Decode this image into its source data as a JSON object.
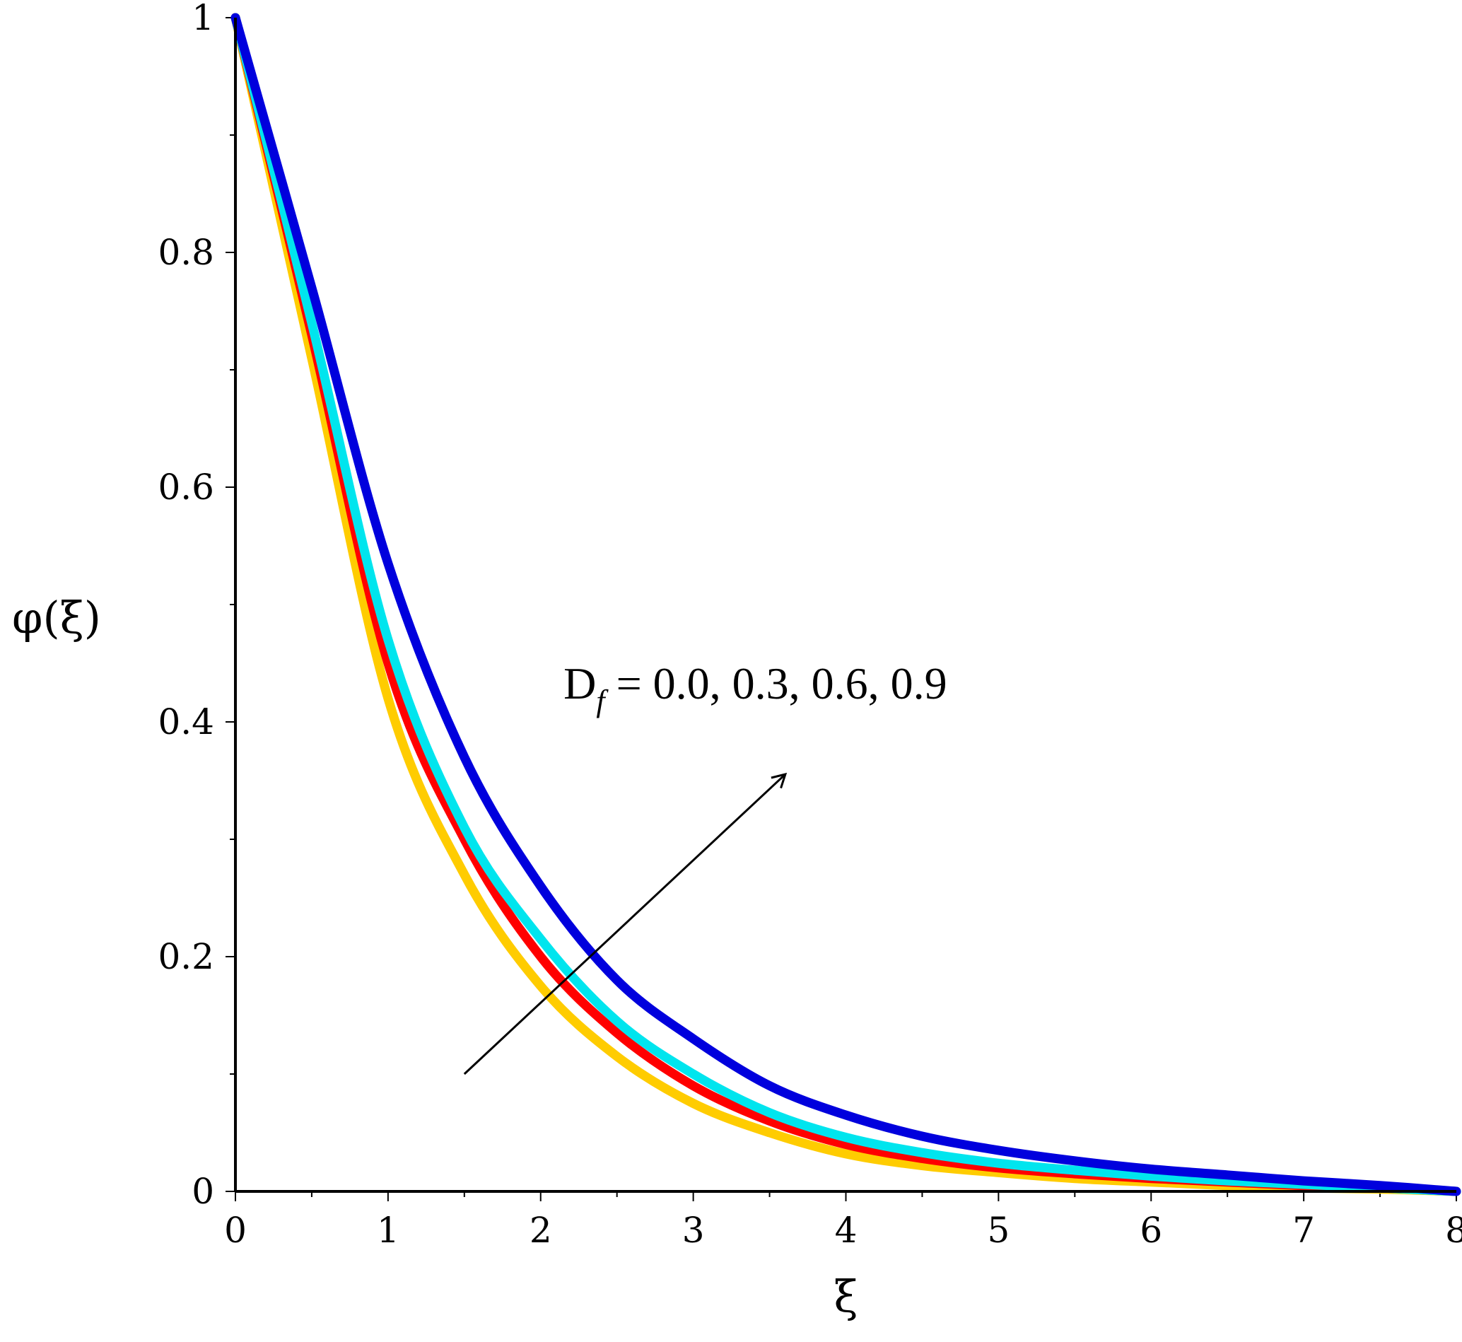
{
  "chart_data": {
    "type": "line",
    "xlabel": "ξ",
    "ylabel": "φ(ξ)",
    "xlim": [
      0,
      8
    ],
    "ylim": [
      0,
      1
    ],
    "x_ticks": [
      "0",
      "1",
      "2",
      "3",
      "4",
      "5",
      "6",
      "7",
      "8"
    ],
    "y_ticks": [
      "0",
      "0.2",
      "0.4",
      "0.6",
      "0.8",
      "1"
    ],
    "grid": false,
    "legend": "none",
    "x": [
      0,
      0.5,
      1,
      1.5,
      2,
      2.5,
      3,
      3.5,
      4,
      4.5,
      5,
      5.5,
      6,
      6.5,
      7,
      7.5,
      8
    ],
    "series": [
      {
        "color": "#ffcc00",
        "values": [
          1.0,
          0.71,
          0.42,
          0.27,
          0.175,
          0.115,
          0.075,
          0.05,
          0.032,
          0.022,
          0.016,
          0.011,
          0.008,
          0.005,
          0.003,
          0.002,
          0.0
        ]
      },
      {
        "color": "#ff0000",
        "values": [
          1.0,
          0.73,
          0.45,
          0.3,
          0.2,
          0.135,
          0.09,
          0.06,
          0.04,
          0.028,
          0.02,
          0.015,
          0.011,
          0.008,
          0.005,
          0.003,
          0.0
        ]
      },
      {
        "color": "#00e5ee",
        "values": [
          1.0,
          0.74,
          0.47,
          0.31,
          0.215,
          0.145,
          0.1,
          0.067,
          0.046,
          0.033,
          0.024,
          0.018,
          0.013,
          0.009,
          0.006,
          0.003,
          0.0
        ]
      },
      {
        "color": "#0000dd",
        "values": [
          1.0,
          0.77,
          0.535,
          0.37,
          0.26,
          0.18,
          0.13,
          0.09,
          0.065,
          0.047,
          0.035,
          0.026,
          0.019,
          0.014,
          0.009,
          0.005,
          0.0
        ]
      }
    ],
    "annotations": [
      {
        "text": "D_f = 0.0, 0.3, 0.6, 0.9",
        "arrow_from": [
          1.5,
          0.1
        ],
        "arrow_to": [
          3.6,
          0.355
        ]
      }
    ],
    "annotation_parts": {
      "main": "D",
      "sub": "f",
      "rest": " = 0.0, 0.3, 0.6, 0.9"
    }
  }
}
